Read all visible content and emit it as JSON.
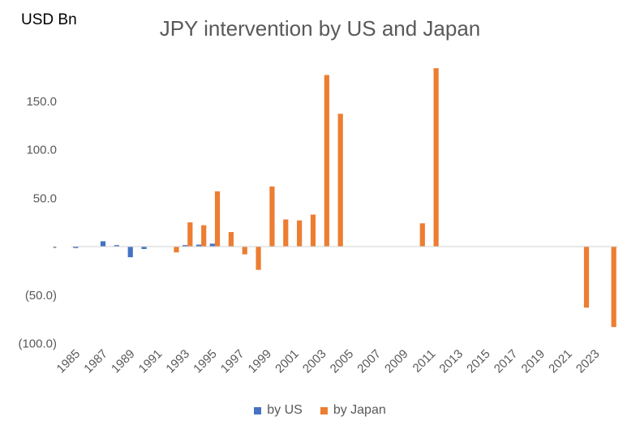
{
  "chart_data": {
    "type": "bar",
    "title": "JPY intervention by US and Japan",
    "ylabel": "USD Bn",
    "xlabel": "",
    "ylim": [
      -100,
      180
    ],
    "yticks": [
      {
        "value": 150,
        "label": "150.0"
      },
      {
        "value": 100,
        "label": "100.0"
      },
      {
        "value": 50,
        "label": "50.0"
      },
      {
        "value": 0,
        "label": "-"
      },
      {
        "value": -50,
        "label": "(50.0)"
      },
      {
        "value": -100,
        "label": "(100.0)"
      }
    ],
    "categories": [
      "1985",
      "1986",
      "1987",
      "1988",
      "1989",
      "1990",
      "1991",
      "1992",
      "1993",
      "1994",
      "1995",
      "1996",
      "1997",
      "1998",
      "1999",
      "2000",
      "2001",
      "2002",
      "2003",
      "2004",
      "2005",
      "2006",
      "2007",
      "2008",
      "2009",
      "2010",
      "2011",
      "2012",
      "2013",
      "2014",
      "2015",
      "2016",
      "2017",
      "2018",
      "2019",
      "2020",
      "2021",
      "2022",
      "2023",
      "2024"
    ],
    "xtick_labels": [
      "1985",
      "1987",
      "1989",
      "1991",
      "1993",
      "1995",
      "1997",
      "1999",
      "2001",
      "2003",
      "2005",
      "2007",
      "2009",
      "2011",
      "2013",
      "2015",
      "2017",
      "2019",
      "2021",
      "2023"
    ],
    "series": [
      {
        "name": "by US",
        "color": "#4472C4",
        "values": [
          -1.5,
          0,
          5.5,
          1.5,
          -11,
          -2.5,
          0,
          0,
          1.5,
          2,
          3,
          0,
          0,
          0,
          0,
          0,
          0,
          0,
          0,
          0,
          0,
          0,
          0,
          0,
          0,
          0,
          0,
          0,
          0,
          0,
          0,
          0,
          0,
          0,
          0,
          0,
          0,
          0,
          0,
          0
        ]
      },
      {
        "name": "by Japan",
        "color": "#ED7D31",
        "values": [
          0,
          0,
          0,
          0,
          0,
          0,
          0,
          -6,
          25,
          22,
          57,
          15,
          -8,
          -24,
          62,
          28,
          27,
          33,
          177,
          137,
          0,
          0,
          0,
          0,
          0,
          24,
          184,
          0,
          0,
          0,
          0,
          0,
          0,
          0,
          0,
          0,
          0,
          -63,
          0,
          -83
        ]
      }
    ],
    "legend_position": "bottom",
    "grid": false
  }
}
